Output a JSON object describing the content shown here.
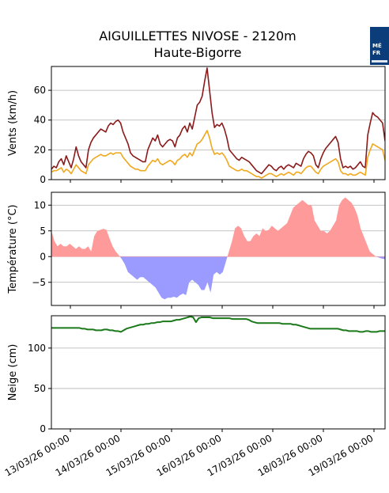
{
  "title": "AIGUILLETTES NIVOSE - 2120m",
  "subtitle": "Haute-Bigorre",
  "logo": {
    "name": "meteo-france-logo",
    "line1": "MÉ",
    "line2": "FR"
  },
  "colors": {
    "wind_max": "#8b1a1a",
    "wind_mean": "#f0a81e",
    "temp_pos": "#ff9a9a",
    "temp_neg": "#9a9aff",
    "snow": "#1a7a1a",
    "grid": "#b0b0b0"
  },
  "chart_data": [
    {
      "type": "line",
      "ylabel": "Vents (km/h)",
      "ylim": [
        0,
        76
      ],
      "yticks": [
        0,
        20,
        40,
        60
      ],
      "grid": true,
      "series": [
        {
          "key": "wind_max",
          "values": [
            7,
            9,
            8,
            12,
            14,
            10,
            16,
            12,
            8,
            14,
            22,
            16,
            12,
            10,
            8,
            20,
            25,
            28,
            30,
            32,
            34,
            33,
            32,
            36,
            38,
            37,
            39,
            40,
            38,
            32,
            28,
            24,
            18,
            16,
            15,
            14,
            13,
            12,
            12,
            20,
            24,
            28,
            26,
            30,
            24,
            22,
            24,
            26,
            27,
            26,
            22,
            28,
            30,
            34,
            36,
            32,
            38,
            34,
            42,
            50,
            52,
            56,
            66,
            75,
            60,
            45,
            35,
            37,
            36,
            38,
            34,
            28,
            20,
            18,
            16,
            14,
            13,
            15,
            14,
            13,
            12,
            10,
            8,
            6,
            5,
            4,
            6,
            8,
            10,
            9,
            7,
            6,
            8,
            9,
            7,
            9,
            10,
            9,
            8,
            11,
            10,
            9,
            14,
            17,
            19,
            18,
            16,
            10,
            8,
            14,
            18,
            21,
            23,
            25,
            27,
            29,
            25,
            14,
            8,
            9,
            8,
            9,
            7,
            8,
            10,
            12,
            9,
            8,
            30,
            38,
            45,
            43,
            42,
            40,
            38,
            26
          ]
        },
        {
          "key": "wind_mean",
          "values": [
            5,
            6,
            6,
            7,
            8,
            5,
            7,
            6,
            4,
            7,
            10,
            8,
            6,
            5,
            4,
            10,
            12,
            14,
            15,
            16,
            17,
            16,
            16,
            17,
            18,
            17,
            18,
            18,
            18,
            15,
            13,
            11,
            9,
            8,
            7,
            7,
            6,
            6,
            6,
            9,
            11,
            13,
            12,
            14,
            11,
            10,
            11,
            12,
            13,
            12,
            10,
            13,
            14,
            16,
            17,
            15,
            18,
            16,
            20,
            24,
            25,
            27,
            30,
            33,
            28,
            21,
            17,
            18,
            17,
            18,
            16,
            13,
            9,
            8,
            7,
            6,
            6,
            7,
            6,
            6,
            5,
            4,
            3,
            2,
            2,
            1,
            2,
            3,
            4,
            4,
            3,
            2,
            3,
            4,
            3,
            4,
            5,
            4,
            3,
            5,
            5,
            4,
            6,
            8,
            9,
            9,
            7,
            5,
            4,
            7,
            9,
            10,
            11,
            12,
            13,
            14,
            12,
            6,
            4,
            4,
            3,
            4,
            3,
            3,
            4,
            5,
            4,
            3,
            15,
            20,
            24,
            23,
            22,
            21,
            20,
            13
          ]
        }
      ]
    },
    {
      "type": "area",
      "ylabel": "Température (°C)",
      "ylim": [
        -9.5,
        12.5
      ],
      "yticks": [
        -5,
        0,
        5,
        10
      ],
      "grid": true,
      "series": [
        {
          "key": "temperature",
          "values": [
            5,
            3,
            2,
            2.5,
            2,
            2,
            2.5,
            2,
            1.5,
            2,
            1.5,
            1.5,
            2,
            1,
            4,
            5,
            5.2,
            5.4,
            5.2,
            3.5,
            2,
            1,
            0.3,
            -0.5,
            -1.5,
            -3,
            -3.5,
            -4,
            -4.5,
            -4,
            -4,
            -4.5,
            -5,
            -5.5,
            -6,
            -7,
            -8,
            -8.3,
            -8,
            -8,
            -7.8,
            -8,
            -7.5,
            -7.2,
            -7.5,
            -5,
            -4.5,
            -5,
            -5.5,
            -6.5,
            -6.5,
            -5,
            -7,
            -3.5,
            -3,
            -3.5,
            -3,
            -1,
            1,
            3,
            5.5,
            6,
            5.5,
            4,
            3,
            3,
            4,
            4.5,
            4,
            5.5,
            5,
            5.2,
            6,
            5.5,
            5,
            5.5,
            6,
            6.5,
            8,
            9.5,
            10,
            10.5,
            11,
            10.5,
            10,
            10,
            7,
            6,
            5,
            5,
            4.5,
            5,
            6,
            7,
            10,
            11,
            11.5,
            11,
            10.5,
            9.5,
            8,
            5.5,
            4,
            2.5,
            1,
            0.5,
            0,
            -0.2,
            -0.4,
            -0.5
          ]
        }
      ]
    },
    {
      "type": "line",
      "ylabel": "Neige (cm)",
      "ylim": [
        0,
        140
      ],
      "yticks": [
        0,
        50,
        100
      ],
      "grid": true,
      "xtick_labels": [
        "13/03/26 00:00",
        "14/03/26 00:00",
        "15/03/26 00:00",
        "16/03/26 00:00",
        "17/03/26 00:00",
        "18/03/26 00:00",
        "19/03/26 00:00"
      ],
      "series": [
        {
          "key": "snow",
          "values": [
            125,
            125,
            125,
            125,
            125,
            125,
            125,
            125,
            125,
            125,
            125,
            124,
            124,
            123,
            123,
            123,
            122,
            122,
            122,
            123,
            123,
            122,
            122,
            121,
            121,
            120,
            122,
            124,
            125,
            126,
            127,
            128,
            129,
            129,
            130,
            130,
            131,
            131,
            132,
            132,
            133,
            133,
            133,
            133,
            134,
            135,
            135,
            136,
            137,
            138,
            139,
            138,
            132,
            137,
            138,
            138,
            138,
            138,
            137,
            137,
            137,
            137,
            137,
            137,
            137,
            136,
            136,
            136,
            136,
            136,
            136,
            135,
            133,
            132,
            131,
            131,
            131,
            131,
            131,
            131,
            131,
            131,
            131,
            130,
            130,
            130,
            130,
            129,
            129,
            128,
            127,
            126,
            125,
            124,
            124,
            124,
            124,
            124,
            124,
            124,
            124,
            124,
            124,
            124,
            123,
            122,
            122,
            121,
            121,
            121,
            121,
            120,
            120,
            121,
            121,
            120,
            120,
            120,
            121,
            121,
            121
          ]
        }
      ]
    }
  ]
}
